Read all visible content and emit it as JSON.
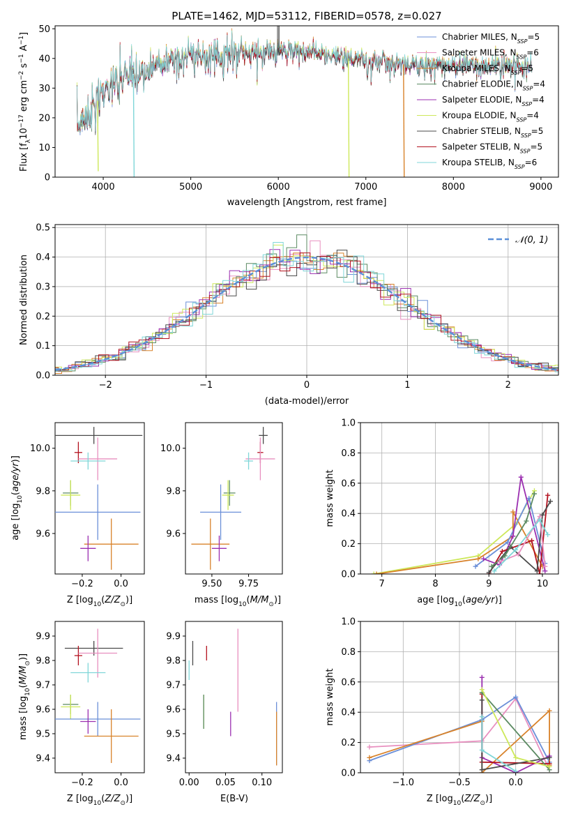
{
  "chart_data": [
    {
      "type": "line",
      "title": "PLATE=1462, MJD=53112, FIBERID=0578, z=0.027",
      "xlabel": "wavelength [Angstrom, rest frame]",
      "ylabel": "Flux [f_λ10^-17 erg cm^-2 s^-1 A^-1]",
      "xlim": [
        3450,
        9200
      ],
      "ylim": [
        0,
        51
      ],
      "xticks": [
        "4000",
        "5000",
        "6000",
        "7000",
        "8000",
        "9000"
      ],
      "yticks": [
        "0",
        "10",
        "20",
        "30",
        "40",
        "50"
      ],
      "legend_position": "upper-right",
      "continuum": {
        "x": [
          3700,
          3800,
          3900,
          4000,
          4100,
          4200,
          4300,
          4400,
          4600,
          4800,
          5000,
          5200,
          5400,
          5600,
          5800,
          6000,
          6200,
          6400,
          6600,
          6800,
          7000,
          7200,
          7400,
          7600,
          7800,
          8000,
          8200,
          8400,
          8600,
          8900
        ],
        "y": [
          17,
          21,
          24,
          29,
          31,
          33,
          35,
          34,
          38,
          40,
          41,
          41,
          42,
          42,
          42,
          43,
          43,
          42,
          41,
          40,
          39,
          39,
          38,
          38,
          38,
          38,
          38,
          37,
          38,
          37
        ]
      },
      "drops": [
        {
          "x": 3935,
          "y": 2
        },
        {
          "x": 4345,
          "y": 0
        },
        {
          "x": 6800,
          "y": 0
        },
        {
          "x": 7430,
          "y": 0
        }
      ],
      "series": [
        {
          "name": "Chabrier MILES, N_SSP=5",
          "color": "#6b8fd8"
        },
        {
          "name": "Salpeter MILES, N_SSP=6",
          "color": "#e88fbf"
        },
        {
          "name": "Kroupa MILES, N_SSP=5",
          "color": "#d8822a"
        },
        {
          "name": "Chabrier ELODIE, N_SSP=4",
          "color": "#5b8a62"
        },
        {
          "name": "Salpeter ELODIE, N_SSP=4",
          "color": "#9b2fb0"
        },
        {
          "name": "Kroupa ELODIE, N_SSP=4",
          "color": "#cde85a"
        },
        {
          "name": "Chabrier STELIB, N_SSP=5",
          "color": "#4a4a4a"
        },
        {
          "name": "Salpeter STELIB, N_SSP=5",
          "color": "#b3121f"
        },
        {
          "name": "Kroupa STELIB, N_SSP=6",
          "color": "#7fd6d8"
        }
      ]
    },
    {
      "type": "histogram",
      "xlabel": "(data-model)/error",
      "ylabel": "Normed distribution",
      "xlim": [
        -2.5,
        2.5
      ],
      "ylim": [
        0,
        0.51
      ],
      "xticks": [
        "−2",
        "−1",
        "0",
        "1",
        "2"
      ],
      "yticks": [
        "0.0",
        "0.1",
        "0.2",
        "0.3",
        "0.4",
        "0.5"
      ],
      "grid": true,
      "legend_position": "upper-right",
      "bin_width": 0.1,
      "reference": {
        "name": "𝒩(0, 1)",
        "mean": 0,
        "sigma": 1,
        "color": "#5b8fd8"
      }
    },
    {
      "type": "errorbar",
      "xlabel": "Z [log10(Z/Z⊙)]",
      "ylabel": "age  [log10(age/yr)]",
      "xlim": [
        -0.34,
        0.12
      ],
      "ylim": [
        9.41,
        10.12
      ],
      "xticks": [
        {
          "v": -0.2,
          "t": "−0.2"
        },
        {
          "v": 0.0,
          "t": "0.0"
        }
      ],
      "yticks": [
        {
          "v": 9.6,
          "t": "9.6"
        },
        {
          "v": 9.8,
          "t": "9.8"
        },
        {
          "v": 10.0,
          "t": "10.0"
        }
      ],
      "points": [
        {
          "x": -0.14,
          "xerr": 0.25,
          "y": 10.06,
          "yerr": 0.04,
          "color": "#4a4a4a"
        },
        {
          "x": -0.22,
          "xerr": 0.02,
          "y": 9.98,
          "yerr": 0.05,
          "color": "#b3121f"
        },
        {
          "x": -0.12,
          "xerr": 0.1,
          "y": 9.95,
          "yerr": 0.1,
          "color": "#e88fbf"
        },
        {
          "x": -0.17,
          "xerr": 0.09,
          "y": 9.94,
          "yerr": 0.04,
          "color": "#7fd6d8"
        },
        {
          "x": -0.26,
          "xerr": 0.04,
          "y": 9.79,
          "yerr": 0.06,
          "color": "#5b8a62"
        },
        {
          "x": -0.26,
          "xerr": 0.05,
          "y": 9.78,
          "yerr": 0.07,
          "color": "#cde85a"
        },
        {
          "x": -0.12,
          "xerr": 0.22,
          "y": 9.7,
          "yerr": 0.13,
          "color": "#6b8fd8"
        },
        {
          "x": -0.05,
          "xerr": 0.14,
          "y": 9.55,
          "yerr": 0.12,
          "color": "#d8822a"
        },
        {
          "x": -0.17,
          "xerr": 0.04,
          "y": 9.53,
          "yerr": 0.06,
          "color": "#9b2fb0"
        }
      ]
    },
    {
      "type": "errorbar",
      "xlabel": "mass [log10(M/M⊙)]",
      "xlim": [
        9.32,
        9.98
      ],
      "ylim": [
        9.41,
        10.12
      ],
      "xticks": [
        {
          "v": 9.5,
          "t": "9.50"
        },
        {
          "v": 9.75,
          "t": "9.75"
        }
      ],
      "yticks": [
        {
          "v": 9.6,
          "t": "9.6"
        },
        {
          "v": 9.8,
          "t": "9.8"
        },
        {
          "v": 10.0,
          "t": "10.0"
        }
      ],
      "points": [
        {
          "x": 9.85,
          "xerr": 0.03,
          "y": 10.06,
          "yerr": 0.04,
          "color": "#4a4a4a"
        },
        {
          "x": 9.83,
          "xerr": 0.02,
          "y": 9.98,
          "yerr": 0.05,
          "color": "#b3121f"
        },
        {
          "x": 9.83,
          "xerr": 0.1,
          "y": 9.95,
          "yerr": 0.1,
          "color": "#e88fbf"
        },
        {
          "x": 9.75,
          "xerr": 0.03,
          "y": 9.94,
          "yerr": 0.04,
          "color": "#7fd6d8"
        },
        {
          "x": 9.62,
          "xerr": 0.04,
          "y": 9.79,
          "yerr": 0.06,
          "color": "#5b8a62"
        },
        {
          "x": 9.61,
          "xerr": 0.04,
          "y": 9.78,
          "yerr": 0.07,
          "color": "#cde85a"
        },
        {
          "x": 9.56,
          "xerr": 0.14,
          "y": 9.7,
          "yerr": 0.13,
          "color": "#6b8fd8"
        },
        {
          "x": 9.49,
          "xerr": 0.13,
          "y": 9.55,
          "yerr": 0.12,
          "color": "#d8822a"
        },
        {
          "x": 9.55,
          "xerr": 0.05,
          "y": 9.53,
          "yerr": 0.06,
          "color": "#9b2fb0"
        }
      ]
    },
    {
      "type": "line",
      "xlabel": "age  [log10(age/yr)]",
      "ylabel": "mass weight",
      "xlim": [
        6.6,
        10.3
      ],
      "ylim": [
        0,
        1.0
      ],
      "xticks": [
        {
          "v": 7,
          "t": "7"
        },
        {
          "v": 8,
          "t": "8"
        },
        {
          "v": 9,
          "t": "9"
        },
        {
          "v": 10,
          "t": "10"
        }
      ],
      "yticks": [
        {
          "v": 0,
          "t": "0.0"
        },
        {
          "v": 0.2,
          "t": "0.2"
        },
        {
          "v": 0.4,
          "t": "0.4"
        },
        {
          "v": 0.6,
          "t": "0.6"
        },
        {
          "v": 0.8,
          "t": "0.8"
        },
        {
          "v": 1.0,
          "t": "1.0"
        }
      ],
      "grid": true,
      "series": [
        {
          "color": "#cde85a",
          "x": [
            6.85,
            8.8,
            9.5,
            9.85
          ],
          "y": [
            0.0,
            0.12,
            0.33,
            0.55
          ]
        },
        {
          "color": "#d8822a",
          "x": [
            6.9,
            8.8,
            9.45,
            9.45,
            10.0
          ],
          "y": [
            0.0,
            0.1,
            0.25,
            0.41,
            0.05
          ]
        },
        {
          "color": "#6b8fd8",
          "x": [
            8.75,
            9.35,
            9.75,
            10.05
          ],
          "y": [
            0.05,
            0.21,
            0.5,
            0.07
          ]
        },
        {
          "color": "#9b2fb0",
          "x": [
            8.9,
            9.2,
            9.45,
            9.6,
            10.05
          ],
          "y": [
            0.1,
            0.06,
            0.25,
            0.64,
            0.02
          ]
        },
        {
          "color": "#b3121f",
          "x": [
            9.0,
            9.25,
            9.8,
            9.95,
            10.1
          ],
          "y": [
            0.0,
            0.15,
            0.22,
            0.0,
            0.52
          ]
        },
        {
          "color": "#4a4a4a",
          "x": [
            9.0,
            9.4,
            9.9,
            10.0,
            10.15
          ],
          "y": [
            0.01,
            0.18,
            0.02,
            0.39,
            0.48
          ]
        },
        {
          "color": "#5b8a62",
          "x": [
            9.05,
            9.3,
            9.7,
            9.85
          ],
          "y": [
            0.05,
            0.12,
            0.35,
            0.53
          ]
        },
        {
          "color": "#e88fbf",
          "x": [
            9.2,
            9.55,
            9.95,
            10.05
          ],
          "y": [
            0.08,
            0.13,
            0.38,
            0.05
          ]
        },
        {
          "color": "#7fd6d8",
          "x": [
            9.1,
            9.5,
            9.95,
            10.1
          ],
          "y": [
            0.02,
            0.16,
            0.36,
            0.26
          ]
        }
      ]
    },
    {
      "type": "errorbar",
      "xlabel": "Z [log10(Z/Z⊙)]",
      "ylabel": "mass [log10(M/M⊙)]",
      "xlim": [
        -0.34,
        0.12
      ],
      "ylim": [
        9.34,
        9.96
      ],
      "xticks": [
        {
          "v": -0.2,
          "t": "−0.2"
        },
        {
          "v": 0.0,
          "t": "0.0"
        }
      ],
      "yticks": [
        {
          "v": 9.4,
          "t": "9.4"
        },
        {
          "v": 9.5,
          "t": "9.5"
        },
        {
          "v": 9.6,
          "t": "9.6"
        },
        {
          "v": 9.7,
          "t": "9.7"
        },
        {
          "v": 9.8,
          "t": "9.8"
        },
        {
          "v": 9.9,
          "t": "9.9"
        }
      ],
      "points": [
        {
          "x": -0.14,
          "xerr": 0.15,
          "y": 9.85,
          "yerr": 0.03,
          "color": "#4a4a4a"
        },
        {
          "x": -0.22,
          "xerr": 0.02,
          "y": 9.82,
          "yerr": 0.04,
          "color": "#b3121f"
        },
        {
          "x": -0.12,
          "xerr": 0.1,
          "y": 9.83,
          "yerr": 0.1,
          "color": "#e88fbf"
        },
        {
          "x": -0.17,
          "xerr": 0.09,
          "y": 9.75,
          "yerr": 0.04,
          "color": "#7fd6d8"
        },
        {
          "x": -0.26,
          "xerr": 0.04,
          "y": 9.62,
          "yerr": 0.04,
          "color": "#5b8a62"
        },
        {
          "x": -0.26,
          "xerr": 0.05,
          "y": 9.61,
          "yerr": 0.05,
          "color": "#cde85a"
        },
        {
          "x": -0.12,
          "xerr": 0.22,
          "y": 9.56,
          "yerr": 0.07,
          "color": "#6b8fd8"
        },
        {
          "x": -0.05,
          "xerr": 0.14,
          "y": 9.49,
          "yerr": 0.11,
          "color": "#d8822a"
        },
        {
          "x": -0.17,
          "xerr": 0.04,
          "y": 9.55,
          "yerr": 0.05,
          "color": "#9b2fb0"
        }
      ]
    },
    {
      "type": "errorbar",
      "xlabel": "E(B-V)",
      "xlim": [
        -0.005,
        0.128
      ],
      "ylim": [
        9.34,
        9.96
      ],
      "xticks": [
        {
          "v": 0.0,
          "t": "0.00"
        },
        {
          "v": 0.05,
          "t": "0.05"
        },
        {
          "v": 0.1,
          "t": "0.10"
        }
      ],
      "yticks": [
        {
          "v": 9.4,
          "t": "9.4"
        },
        {
          "v": 9.5,
          "t": "9.5"
        },
        {
          "v": 9.6,
          "t": "9.6"
        },
        {
          "v": 9.7,
          "t": "9.7"
        },
        {
          "v": 9.8,
          "t": "9.8"
        },
        {
          "v": 9.9,
          "t": "9.9"
        }
      ],
      "points": [
        {
          "x": 0.005,
          "y": 9.83,
          "yerr": 0.05,
          "color": "#4a4a4a"
        },
        {
          "x": 0.024,
          "y": 9.83,
          "yerr": 0.03,
          "color": "#b3121f"
        },
        {
          "x": 0.067,
          "y": 9.76,
          "yerr": 0.17,
          "color": "#e88fbf"
        },
        {
          "x": 0.0,
          "y": 9.76,
          "yerr": 0.04,
          "color": "#7fd6d8"
        },
        {
          "x": 0.02,
          "y": 9.59,
          "yerr": 0.07,
          "color": "#cde85a"
        },
        {
          "x": 0.02,
          "y": 9.59,
          "yerr": 0.07,
          "color": "#5b8a62"
        },
        {
          "x": 0.057,
          "y": 9.54,
          "yerr": 0.05,
          "color": "#9b2fb0"
        },
        {
          "x": 0.12,
          "y": 9.5,
          "yerr": 0.13,
          "color": "#6b8fd8"
        },
        {
          "x": 0.12,
          "y": 9.48,
          "yerr": 0.11,
          "color": "#d8822a"
        }
      ]
    },
    {
      "type": "line",
      "xlabel": "Z [log10(Z/Z⊙)]",
      "ylabel": "mass weight",
      "xlim": [
        -1.38,
        0.38
      ],
      "ylim": [
        0,
        1.0
      ],
      "xticks": [
        {
          "v": -1.0,
          "t": "−1.0"
        },
        {
          "v": -0.5,
          "t": "−0.5"
        },
        {
          "v": 0.0,
          "t": "0.0"
        }
      ],
      "yticks": [
        {
          "v": 0,
          "t": "0.0"
        },
        {
          "v": 0.2,
          "t": "0.2"
        },
        {
          "v": 0.4,
          "t": "0.4"
        },
        {
          "v": 0.6,
          "t": "0.6"
        },
        {
          "v": 0.8,
          "t": "0.8"
        },
        {
          "v": 1.0,
          "t": "1.0"
        }
      ],
      "grid": true,
      "series": [
        {
          "color": "#e88fbf",
          "x": [
            -1.3,
            -0.3,
            0.0,
            0.3
          ],
          "y": [
            0.17,
            0.21,
            0.49,
            0.02
          ]
        },
        {
          "color": "#6b8fd8",
          "x": [
            -1.3,
            -0.3,
            0.0,
            0.3
          ],
          "y": [
            0.08,
            0.35,
            0.5,
            0.07
          ]
        },
        {
          "color": "#d8822a",
          "x": [
            -1.3,
            -0.3,
            -0.3,
            0.3,
            0.3
          ],
          "y": [
            0.1,
            0.34,
            0.0,
            0.41,
            0.05
          ]
        },
        {
          "color": "#9b2fb0",
          "x": [
            -0.3,
            -0.3,
            0.0,
            0.3
          ],
          "y": [
            0.63,
            0.1,
            0.0,
            0.11
          ]
        },
        {
          "color": "#b3121f",
          "x": [
            -0.3,
            -0.3,
            0.3
          ],
          "y": [
            0.52,
            0.07,
            0.06
          ]
        },
        {
          "color": "#4a4a4a",
          "x": [
            -0.3,
            -0.3,
            0.3
          ],
          "y": [
            0.48,
            0.02,
            0.1
          ]
        },
        {
          "color": "#5b8a62",
          "x": [
            -0.3,
            0.3
          ],
          "y": [
            0.53,
            0.02
          ]
        },
        {
          "color": "#cde85a",
          "x": [
            -0.3,
            0.0,
            0.3
          ],
          "y": [
            0.55,
            0.1,
            0.04
          ]
        },
        {
          "color": "#7fd6d8",
          "x": [
            -0.3,
            -0.3,
            0.0
          ],
          "y": [
            0.37,
            0.15,
            0.01
          ]
        }
      ]
    }
  ]
}
